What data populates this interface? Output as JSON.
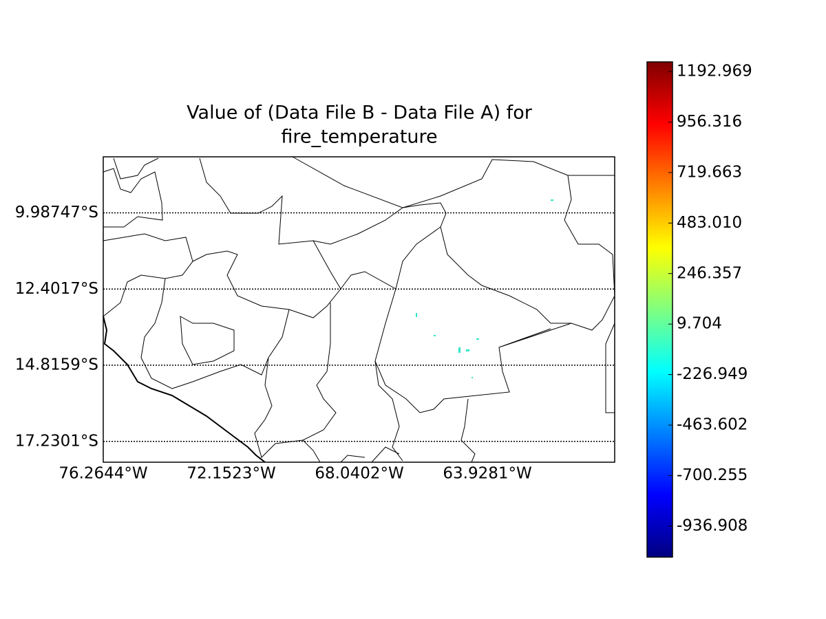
{
  "chart_data": {
    "type": "map",
    "title": [
      "Value of (Data File B - Data File A) for",
      "fire_temperature"
    ],
    "xlim": [
      -76.2644,
      -59.84
    ],
    "ylim": [
      -17.889,
      -8.21
    ],
    "xticks": [
      {
        "value": -76.2644,
        "label": "76.2644°W"
      },
      {
        "value": -72.1523,
        "label": "72.1523°W"
      },
      {
        "value": -68.0402,
        "label": "68.0402°W"
      },
      {
        "value": -63.9281,
        "label": "63.9281°W"
      }
    ],
    "yticks": [
      {
        "value": -9.98747,
        "label": "9.98747°S"
      },
      {
        "value": -12.4017,
        "label": "12.4017°S"
      },
      {
        "value": -14.8159,
        "label": "14.8159°S"
      },
      {
        "value": -17.2301,
        "label": "17.2301°S"
      }
    ],
    "grid": true,
    "colormap": "jet",
    "clim": [
      -1082,
      1238
    ],
    "cticks": [
      1192.969,
      956.316,
      719.663,
      {
        "value": 483.01,
        "label": "483.010"
      },
      246.357,
      9.704,
      -226.949,
      -463.602,
      -700.255,
      -936.908
    ]
  }
}
